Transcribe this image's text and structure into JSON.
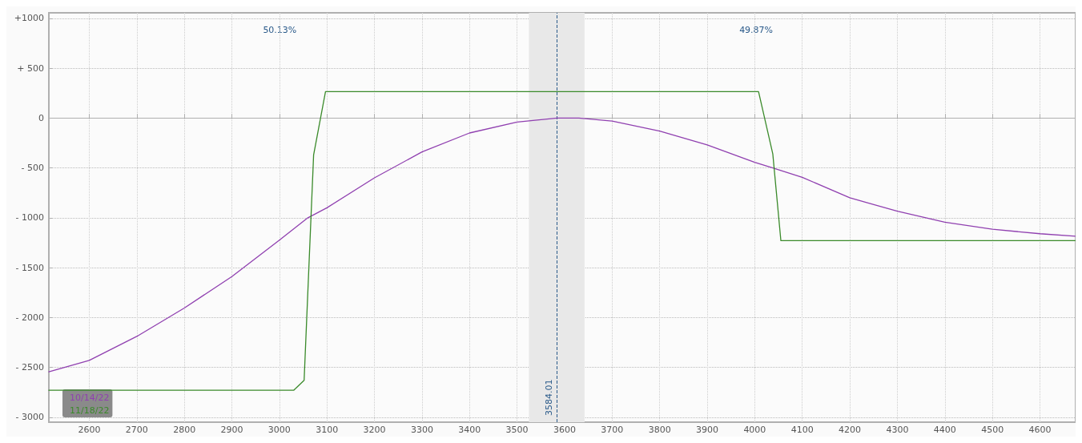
{
  "chart_data": {
    "type": "line",
    "annotations": [
      "50.13%",
      "49.87%"
    ],
    "series": [
      {
        "name": "10/14/22",
        "color": "#9040b0",
        "x": [
          2515,
          2600,
          2700,
          2800,
          2900,
          3000,
          3060,
          3100,
          3200,
          3300,
          3400,
          3500,
          3584,
          3630,
          3700,
          3800,
          3900,
          4000,
          4038,
          4100,
          4200,
          4300,
          4400,
          4500,
          4600,
          4675
        ],
        "values": [
          -2545,
          -2430,
          -2190,
          -1905,
          -1590,
          -1225,
          -1000,
          -900,
          -600,
          -340,
          -150,
          -40,
          0,
          0,
          -30,
          -130,
          -270,
          -445,
          -500,
          -595,
          -800,
          -935,
          -1045,
          -1115,
          -1160,
          -1185
        ]
      },
      {
        "name": "11/18/22",
        "color": "#3a8a2a",
        "x": [
          2515,
          3030,
          3052,
          3072,
          3097,
          4008,
          4038,
          4055,
          4675
        ],
        "values": [
          -2730,
          -2730,
          -2630,
          -370,
          265,
          265,
          -360,
          -1230,
          -1230
        ]
      }
    ],
    "xlim": [
      2515,
      4675
    ],
    "xticks": [
      2600,
      2700,
      2800,
      2900,
      3000,
      3100,
      3200,
      3300,
      3400,
      3500,
      3600,
      3700,
      3800,
      3900,
      4000,
      4100,
      4200,
      4300,
      4400,
      4500,
      4600
    ],
    "ylim": [
      -3050,
      1055
    ],
    "yticks": [
      {
        "value": 1000,
        "label": "+1000"
      },
      {
        "value": 500,
        "label": "+ 500"
      },
      0,
      {
        "value": -500,
        "label": "- 500"
      },
      {
        "value": -1000,
        "label": "- 1000"
      },
      {
        "value": -1500,
        "label": "- 1500"
      },
      {
        "value": -2000,
        "label": "- 2000"
      },
      {
        "value": -2500,
        "label": "- 2500"
      },
      {
        "value": -3000,
        "label": "- 3000"
      }
    ],
    "ref_lines": [
      {
        "axis": "x",
        "value": 3584.01,
        "label": "3584.01",
        "color": "#2a5a8a",
        "line_style": "dashed"
      }
    ],
    "bands": [
      {
        "axis": "x",
        "from": 3525,
        "to": 3642,
        "color": "#e8e8e8"
      }
    ],
    "grid": true,
    "legend": "bottom left",
    "marker": "none",
    "line_style": "solid"
  }
}
